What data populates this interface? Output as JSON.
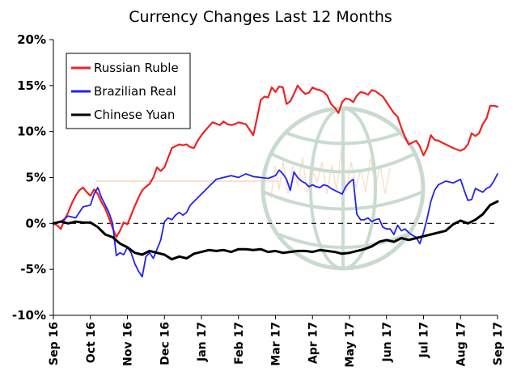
{
  "chart_data": {
    "type": "line",
    "title": "Currency Changes Last 12 Months",
    "xlabel": "",
    "ylabel": "",
    "x_ticks": [
      "Sep 16",
      "Oct 16",
      "Nov 16",
      "Dec 16",
      "Jan 17",
      "Feb 17",
      "Mar 17",
      "Apr 17",
      "May 17",
      "Jun 17",
      "Jul 17",
      "Aug 17",
      "Sep 17"
    ],
    "y_ticks": [
      "20%",
      "15%",
      "10%",
      "5%",
      "0%",
      "-5%",
      "-10%"
    ],
    "ylim": [
      -10,
      20
    ],
    "xlim": [
      0,
      12
    ],
    "legend_position": "top-left",
    "zero_line": "dashed",
    "grid": false,
    "series": [
      {
        "name": "Russian Ruble",
        "color": "#ee2222",
        "x": [
          0,
          0.1,
          0.2,
          0.3,
          0.4,
          0.5,
          0.6,
          0.7,
          0.8,
          0.9,
          1.0,
          1.1,
          1.2,
          1.3,
          1.4,
          1.5,
          1.6,
          1.7,
          1.8,
          1.9,
          2.0,
          2.1,
          2.2,
          2.3,
          2.4,
          2.5,
          2.6,
          2.7,
          2.8,
          2.9,
          3.0,
          3.2,
          3.4,
          3.5,
          3.6,
          3.7,
          3.8,
          3.9,
          4.0,
          4.1,
          4.3,
          4.5,
          4.6,
          4.7,
          4.8,
          4.9,
          5.0,
          5.2,
          5.4,
          5.5,
          5.6,
          5.7,
          5.8,
          5.9,
          6.0,
          6.1,
          6.2,
          6.3,
          6.4,
          6.5,
          6.6,
          6.7,
          6.8,
          6.9,
          7.0,
          7.1,
          7.2,
          7.3,
          7.4,
          7.5,
          7.6,
          7.7,
          7.8,
          7.9,
          8.0,
          8.1,
          8.2,
          8.3,
          8.4,
          8.5,
          8.6,
          8.7,
          8.8,
          8.9,
          9.0,
          9.1,
          9.2,
          9.3,
          9.4,
          9.5,
          9.6,
          9.7,
          9.8,
          9.9,
          10.0,
          10.1,
          10.2,
          10.3,
          10.4,
          10.6,
          10.8,
          11.0,
          11.1,
          11.2,
          11.3,
          11.4,
          11.5,
          11.6,
          11.7,
          11.8,
          11.9,
          12.0
        ],
        "values": [
          0,
          -0.2,
          -0.6,
          0.4,
          1.2,
          2.2,
          3.0,
          3.6,
          3.9,
          3.4,
          3.0,
          3.7,
          3.2,
          2.3,
          1.6,
          0.6,
          -0.5,
          -1.5,
          -0.8,
          0.1,
          -0.1,
          0.9,
          1.9,
          2.8,
          3.6,
          4.0,
          4.3,
          5.0,
          6.1,
          5.7,
          6.1,
          8.2,
          8.6,
          8.5,
          8.6,
          8.3,
          8.2,
          9.0,
          9.6,
          10.1,
          11.0,
          10.7,
          11.1,
          10.8,
          10.7,
          10.8,
          11.0,
          10.8,
          9.6,
          11.4,
          13.4,
          13.8,
          13.7,
          14.8,
          14.3,
          14.9,
          14.8,
          13.0,
          13.3,
          14.1,
          15.0,
          14.5,
          14.1,
          14.2,
          14.8,
          14.6,
          14.5,
          14.3,
          13.9,
          13.0,
          12.6,
          12.0,
          13.2,
          13.6,
          13.5,
          13.2,
          13.9,
          14.3,
          14.2,
          14.0,
          14.5,
          14.4,
          14.1,
          13.8,
          13.2,
          12.6,
          12.0,
          11.6,
          10.4,
          9.4,
          8.6,
          8.8,
          9.0,
          8.4,
          7.4,
          8.2,
          9.6,
          9.1,
          9.0,
          8.6,
          8.2,
          7.9,
          8.1,
          8.6,
          9.8,
          9.5,
          9.8,
          10.8,
          11.4,
          12.8,
          12.8,
          12.7
        ]
      },
      {
        "name": "Brazilian Real",
        "color": "#2222ee",
        "x": [
          0,
          0.2,
          0.4,
          0.6,
          0.8,
          1.0,
          1.1,
          1.2,
          1.3,
          1.4,
          1.5,
          1.6,
          1.7,
          1.8,
          1.9,
          2.0,
          2.1,
          2.2,
          2.3,
          2.4,
          2.5,
          2.6,
          2.7,
          2.8,
          2.9,
          3.0,
          3.1,
          3.2,
          3.3,
          3.4,
          3.5,
          3.6,
          3.7,
          3.8,
          4.0,
          4.2,
          4.4,
          4.6,
          4.8,
          5.0,
          5.2,
          5.4,
          5.6,
          5.8,
          6.0,
          6.1,
          6.2,
          6.3,
          6.4,
          6.5,
          6.6,
          6.7,
          6.8,
          6.9,
          7.0,
          7.1,
          7.2,
          7.3,
          7.4,
          7.5,
          7.6,
          7.7,
          7.8,
          7.9,
          8.0,
          8.1,
          8.2,
          8.3,
          8.4,
          8.5,
          8.6,
          8.7,
          8.8,
          8.9,
          9.0,
          9.1,
          9.2,
          9.3,
          9.4,
          9.5,
          9.6,
          9.7,
          9.8,
          9.9,
          10.0,
          10.1,
          10.2,
          10.3,
          10.4,
          10.6,
          10.8,
          11.0,
          11.1,
          11.2,
          11.3,
          11.4,
          11.5,
          11.6,
          11.7,
          11.8,
          11.9,
          12.0
        ],
        "values": [
          0,
          0.2,
          0.8,
          0.6,
          1.8,
          2.0,
          3.2,
          3.9,
          2.8,
          2.0,
          1.2,
          0,
          -3.5,
          -3.2,
          -3.4,
          -2.6,
          -3.2,
          -4.4,
          -5.2,
          -5.8,
          -3.6,
          -3.2,
          -3.8,
          -2.8,
          -1.8,
          0.2,
          0.6,
          0.4,
          0.9,
          1.2,
          0.9,
          1.2,
          2.0,
          2.4,
          3.2,
          4.0,
          4.8,
          5.0,
          5.2,
          5.0,
          5.4,
          5.1,
          5.0,
          4.9,
          5.2,
          5.8,
          5.4,
          4.8,
          3.6,
          5.6,
          5.0,
          4.6,
          4.4,
          4.0,
          4.2,
          4.0,
          3.9,
          4.2,
          4.1,
          3.8,
          3.6,
          3.4,
          3.2,
          4.0,
          4.5,
          4.8,
          1.0,
          0.4,
          0.4,
          0.6,
          0.2,
          0.4,
          0.5,
          -0.4,
          -0.6,
          -0.6,
          -1.2,
          -0.2,
          -0.8,
          -0.6,
          -1.0,
          -1.3,
          -1.5,
          -2.2,
          -1.0,
          0.6,
          2.4,
          3.6,
          4.2,
          4.6,
          4.4,
          4.8,
          3.6,
          2.5,
          2.6,
          3.8,
          3.6,
          3.4,
          3.8,
          4.0,
          4.6,
          5.4
        ]
      },
      {
        "name": "Chinese Yuan",
        "color": "#000000",
        "x": [
          0,
          0.2,
          0.4,
          0.6,
          0.8,
          1.0,
          1.2,
          1.4,
          1.6,
          1.8,
          2.0,
          2.2,
          2.4,
          2.6,
          2.8,
          3.0,
          3.2,
          3.4,
          3.6,
          3.8,
          4.0,
          4.2,
          4.4,
          4.6,
          4.8,
          5.0,
          5.2,
          5.4,
          5.6,
          5.8,
          6.0,
          6.2,
          6.4,
          6.6,
          6.8,
          7.0,
          7.2,
          7.4,
          7.6,
          7.8,
          8.0,
          8.2,
          8.4,
          8.6,
          8.8,
          9.0,
          9.2,
          9.4,
          9.6,
          9.8,
          10.0,
          10.2,
          10.4,
          10.6,
          10.8,
          11.0,
          11.2,
          11.4,
          11.6,
          11.8,
          12.0
        ],
        "values": [
          0,
          0.2,
          0.0,
          0.2,
          0.1,
          0.1,
          -0.4,
          -1.2,
          -1.5,
          -2.2,
          -2.6,
          -3.2,
          -3.4,
          -3.0,
          -3.2,
          -3.4,
          -3.9,
          -3.6,
          -3.8,
          -3.3,
          -3.1,
          -2.9,
          -3.0,
          -2.9,
          -3.1,
          -2.8,
          -2.8,
          -2.9,
          -2.8,
          -3.1,
          -3.0,
          -3.2,
          -3.1,
          -3.0,
          -3.0,
          -3.1,
          -2.9,
          -3.0,
          -3.1,
          -3.3,
          -3.2,
          -3.0,
          -2.8,
          -2.5,
          -2.0,
          -1.8,
          -2.0,
          -1.6,
          -1.8,
          -1.6,
          -1.4,
          -1.2,
          -1.0,
          -0.8,
          -0.1,
          0.3,
          0.0,
          0.4,
          1.0,
          2.0,
          2.4
        ]
      }
    ]
  }
}
